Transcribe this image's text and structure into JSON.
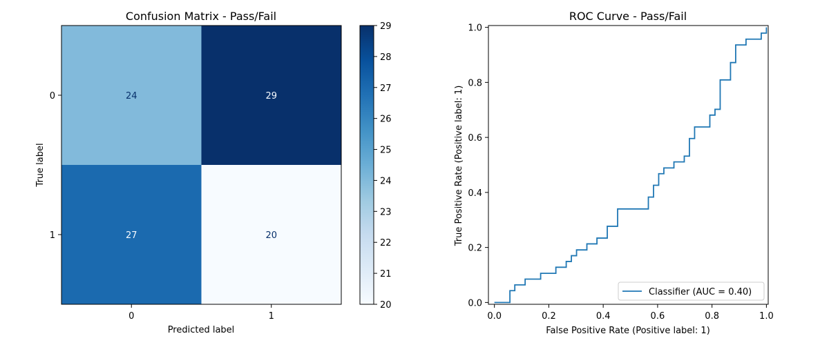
{
  "chart_data": [
    {
      "type": "heatmap",
      "title": "Confusion Matrix - Pass/Fail",
      "xlabel": "Predicted label",
      "ylabel": "True label",
      "x_categories": [
        "0",
        "1"
      ],
      "y_categories": [
        "0",
        "1"
      ],
      "matrix": [
        [
          24,
          29
        ],
        [
          27,
          20
        ]
      ],
      "colormap": "Blues",
      "colorbar": {
        "min": 20,
        "max": 29,
        "ticks": [
          "20",
          "21",
          "22",
          "23",
          "24",
          "25",
          "26",
          "27",
          "28",
          "29"
        ]
      }
    },
    {
      "type": "line",
      "title": "ROC Curve - Pass/Fail",
      "xlabel": "False Positive Rate (Positive label: 1)",
      "ylabel": "True Positive Rate (Positive label: 1)",
      "xlim": [
        0.0,
        1.0
      ],
      "ylim": [
        0.0,
        1.0
      ],
      "xticks": [
        "0.0",
        "0.2",
        "0.4",
        "0.6",
        "0.8",
        "1.0"
      ],
      "yticks": [
        "0.0",
        "0.2",
        "0.4",
        "0.6",
        "0.8",
        "1.0"
      ],
      "legend_position": "lower-right",
      "line_color": "#1f77b4",
      "series": [
        {
          "name": "Classifier (AUC = 0.40)",
          "x": [
            0.0,
            0.057,
            0.057,
            0.075,
            0.075,
            0.113,
            0.113,
            0.17,
            0.17,
            0.226,
            0.226,
            0.264,
            0.264,
            0.283,
            0.283,
            0.302,
            0.302,
            0.34,
            0.34,
            0.377,
            0.377,
            0.415,
            0.415,
            0.453,
            0.453,
            0.566,
            0.566,
            0.585,
            0.585,
            0.604,
            0.604,
            0.623,
            0.623,
            0.66,
            0.66,
            0.698,
            0.698,
            0.717,
            0.717,
            0.736,
            0.736,
            0.792,
            0.792,
            0.811,
            0.811,
            0.83,
            0.83,
            0.868,
            0.868,
            0.887,
            0.887,
            0.925,
            0.925,
            0.981,
            0.981,
            1.0,
            1.0
          ],
          "y": [
            0.0,
            0.0,
            0.043,
            0.043,
            0.064,
            0.064,
            0.085,
            0.085,
            0.106,
            0.106,
            0.128,
            0.128,
            0.149,
            0.149,
            0.17,
            0.17,
            0.191,
            0.191,
            0.213,
            0.213,
            0.234,
            0.234,
            0.277,
            0.277,
            0.34,
            0.34,
            0.383,
            0.383,
            0.426,
            0.426,
            0.468,
            0.468,
            0.489,
            0.489,
            0.511,
            0.511,
            0.532,
            0.532,
            0.596,
            0.596,
            0.638,
            0.638,
            0.681,
            0.681,
            0.702,
            0.702,
            0.809,
            0.809,
            0.872,
            0.872,
            0.936,
            0.936,
            0.957,
            0.957,
            0.979,
            0.979,
            1.0
          ]
        }
      ]
    }
  ]
}
